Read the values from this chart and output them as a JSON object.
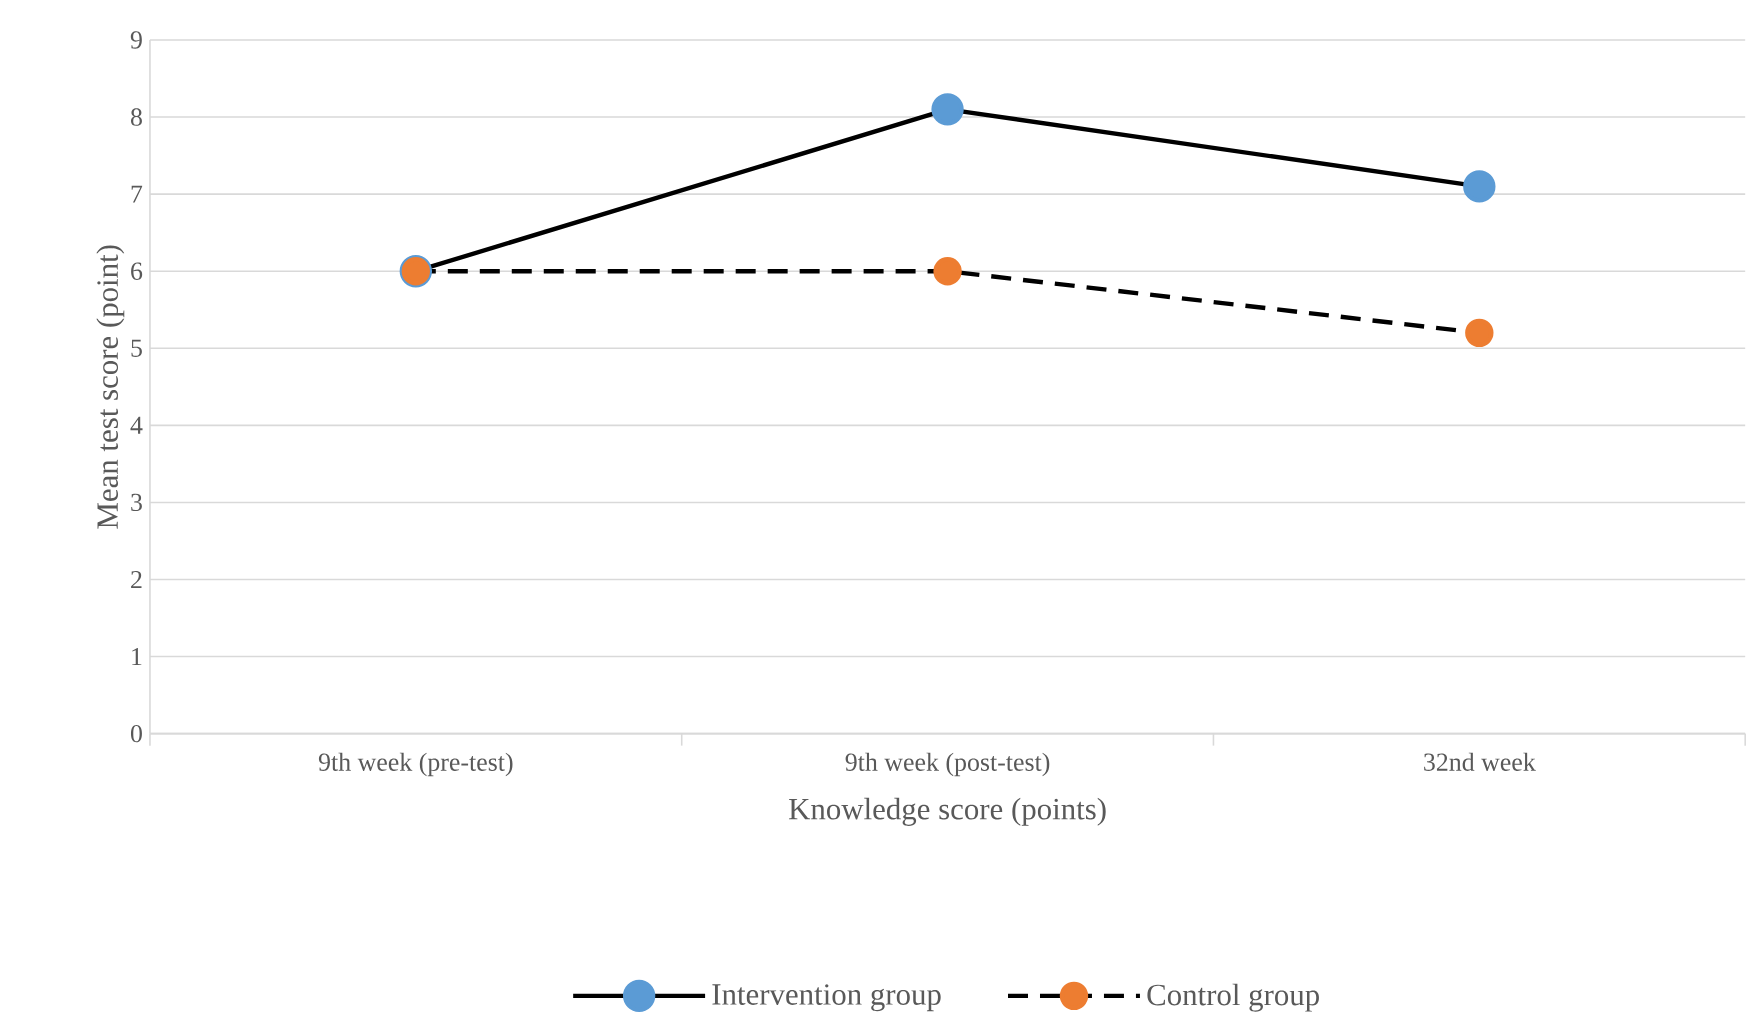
{
  "chart_data": {
    "type": "line",
    "categories": [
      "9th week (pre-test)",
      "9th week (post-test)",
      "32nd week"
    ],
    "series": [
      {
        "name": "Intervention group",
        "color": "#5b9bd5",
        "line_style": "solid",
        "values": [
          6.0,
          8.1,
          7.1
        ]
      },
      {
        "name": "Control group",
        "color": "#ed7d31",
        "line_style": "dashed",
        "values": [
          6.0,
          6.0,
          5.2
        ]
      }
    ],
    "xlabel": "Knowledge score (points)",
    "ylabel": "Mean test score (point)",
    "ylim": [
      0,
      9
    ],
    "yticks": [
      0,
      1,
      2,
      3,
      4,
      5,
      6,
      7,
      8,
      9
    ],
    "grid": "y",
    "legend": "bottom",
    "marker": "circle"
  }
}
